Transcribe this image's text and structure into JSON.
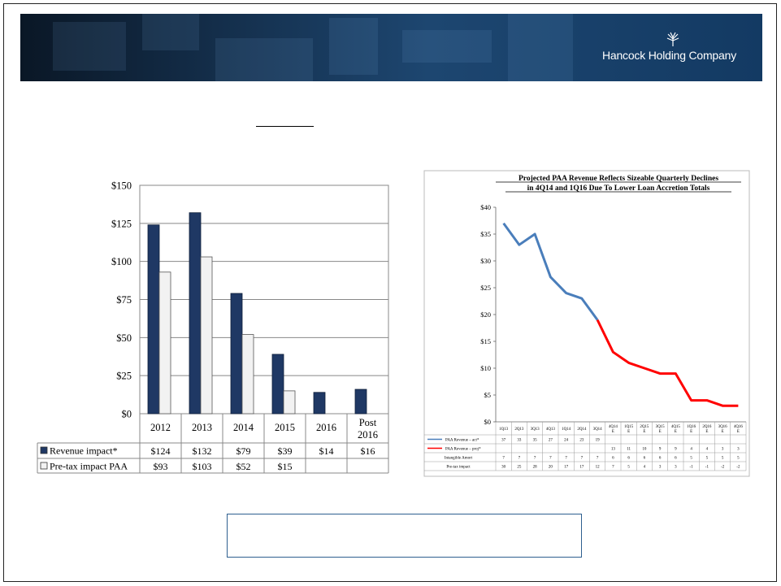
{
  "brand": {
    "company": "Hancock Holding Company",
    "logo_icon": "tree-emblem-icon"
  },
  "chart_data": [
    {
      "type": "bar",
      "categories": [
        "2012",
        "2013",
        "2014",
        "2015",
        "2016",
        "Post 2016"
      ],
      "series": [
        {
          "name": "Revenue impact*",
          "values": [
            124,
            132,
            79,
            39,
            14,
            16
          ],
          "labels": [
            "$124",
            "$132",
            "$79",
            "$39",
            "$14",
            "$16"
          ],
          "color": "#1f3864"
        },
        {
          "name": "Pre-tax impact PAA",
          "values": [
            93,
            103,
            52,
            15,
            null,
            null
          ],
          "labels": [
            "$93",
            "$103",
            "$52",
            "$15",
            "",
            ""
          ],
          "color": "#f2f2f2"
        }
      ],
      "ylim": [
        0,
        150
      ],
      "yticks": [
        0,
        25,
        50,
        75,
        100,
        125,
        150
      ],
      "ytick_labels": [
        "$0",
        "$25",
        "$50",
        "$75",
        "$100",
        "$125",
        "$150"
      ],
      "grid": true,
      "legend": "data-table-left"
    },
    {
      "type": "line",
      "title_lines": [
        "Projected PAA Revenue Reflects Sizeable Quarterly Declines",
        "in 4Q14 and 1Q16 Due To Lower Loan Accretion Totals"
      ],
      "categories": [
        "1Q13",
        "2Q13",
        "3Q13",
        "4Q13",
        "1Q14",
        "2Q14",
        "3Q14",
        "4Q14 E",
        "1Q15 E",
        "2Q15 E",
        "3Q15 E",
        "4Q15 E",
        "1Q16 E",
        "2Q16 E",
        "3Q16 E",
        "4Q16 E"
      ],
      "ylim": [
        0,
        40
      ],
      "yticks": [
        0,
        5,
        10,
        15,
        20,
        25,
        30,
        35,
        40
      ],
      "ytick_labels": [
        "$0",
        "$5",
        "$10",
        "$15",
        "$20",
        "$25",
        "$30",
        "$35",
        "$40"
      ],
      "series": [
        {
          "name": "PAA Revenue – act*",
          "color": "#4a7ebb",
          "values": [
            37,
            33,
            35,
            27,
            24,
            23,
            19,
            null,
            null,
            null,
            null,
            null,
            null,
            null,
            null,
            null
          ],
          "row": [
            "37",
            "33",
            "35",
            "27",
            "24",
            "23",
            "19",
            "",
            "",
            "",
            "",
            "",
            "",
            "",
            "",
            ""
          ]
        },
        {
          "name": "PAA Revenue – proj*",
          "color": "#ff0000",
          "values": [
            null,
            null,
            null,
            null,
            null,
            null,
            19,
            13,
            11,
            10,
            9,
            9,
            4,
            4,
            3,
            3
          ],
          "row": [
            "",
            "",
            "",
            "",
            "",
            "",
            "",
            "13",
            "11",
            "10",
            "9",
            "9",
            "4",
            "4",
            "3",
            "3"
          ]
        }
      ],
      "table_rows": [
        {
          "name": "Intangible Amort",
          "row": [
            "7",
            "7",
            "7",
            "7",
            "7",
            "7",
            "7",
            "6",
            "6",
            "6",
            "6",
            "6",
            "5",
            "5",
            "5",
            "5"
          ]
        },
        {
          "name": "Pre-tax impact",
          "row": [
            "30",
            "25",
            "28",
            "20",
            "17",
            "17",
            "12",
            "7",
            "5",
            "4",
            "3",
            "3",
            "-1",
            "-1",
            "-2",
            "-2"
          ]
        }
      ]
    }
  ]
}
